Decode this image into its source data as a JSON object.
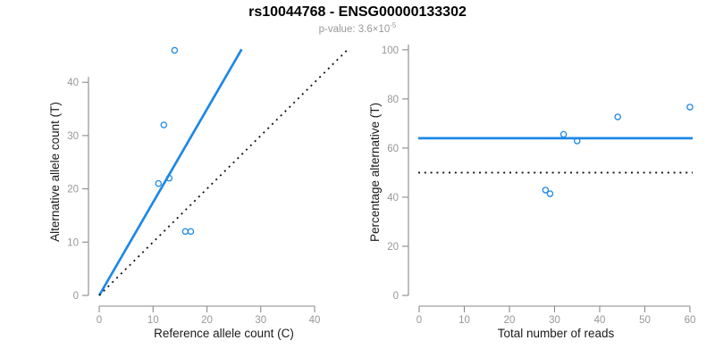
{
  "header": {
    "title": "rs10044768 - ENSG00000133302",
    "subtitle_text": "p-value: 3.6×10",
    "subtitle_exponent": "-5"
  },
  "colors": {
    "accent_blue": "#1E88E5",
    "axis_gray": "#8a8a8a",
    "tick_label_gray": "#979797",
    "label_black": "#1a1a1a",
    "dotted_black": "#111111"
  },
  "chart_data": [
    {
      "type": "scatter",
      "panel": "left",
      "xlabel": "Reference allele count (C)",
      "ylabel": "Alternative allele count (T)",
      "xlim": [
        0,
        46.3
      ],
      "ylim": [
        0,
        46.4
      ],
      "xticks": [
        0,
        10,
        20,
        30,
        40
      ],
      "yticks": [
        0,
        10,
        20,
        30,
        40
      ],
      "grid": false,
      "points": [
        [
          14,
          46
        ],
        [
          12,
          32
        ],
        [
          11,
          21
        ],
        [
          13,
          22
        ],
        [
          16,
          12
        ],
        [
          17,
          12
        ]
      ],
      "lines": [
        {
          "name": "fit-line",
          "style": "solid",
          "color": "blue",
          "from": [
            0,
            0
          ],
          "to": [
            26.45,
            46.2
          ]
        },
        {
          "name": "identity-line",
          "style": "dotted",
          "color": "black",
          "from": [
            0,
            0
          ],
          "to": [
            46.2,
            46.2
          ]
        }
      ]
    },
    {
      "type": "scatter",
      "panel": "right",
      "xlabel": "Total number of reads",
      "ylabel": "Percentage alternative (T)",
      "xlim": [
        0,
        60.6
      ],
      "ylim": [
        0,
        100.3
      ],
      "xticks": [
        0,
        10,
        20,
        30,
        40,
        50,
        60
      ],
      "yticks": [
        0,
        20,
        40,
        60,
        80,
        100
      ],
      "grid": false,
      "points": [
        [
          32,
          65.6
        ],
        [
          35,
          62.9
        ],
        [
          44,
          72.7
        ],
        [
          60,
          76.7
        ],
        [
          28,
          42.9
        ],
        [
          29,
          41.4
        ]
      ],
      "lines": [
        {
          "name": "mean-percentage-line",
          "style": "solid",
          "color": "blue",
          "y": 64
        },
        {
          "name": "fifty-percent-line",
          "style": "dotted",
          "color": "black",
          "y": 50
        }
      ]
    }
  ]
}
